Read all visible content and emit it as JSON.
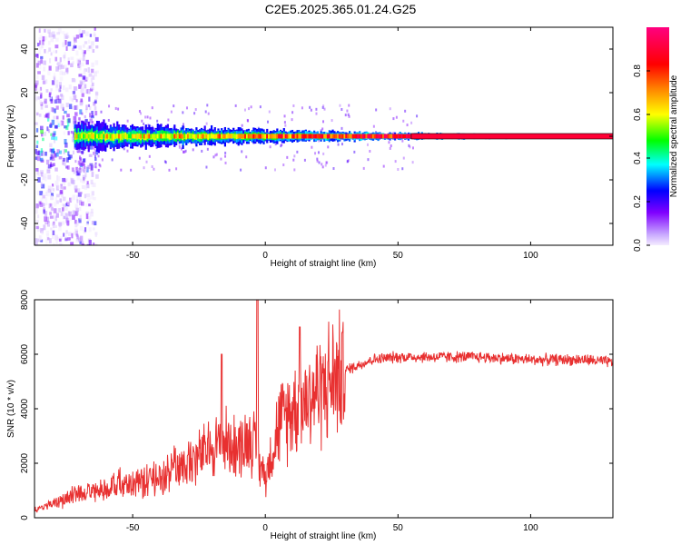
{
  "figure": {
    "title": "C2E5.2025.365.01.24.G25"
  },
  "colorbar": {
    "label": "Normalized spectral amplitude",
    "ticks": [
      "0.0",
      "0.2",
      "0.4",
      "0.6",
      "0.8"
    ],
    "tick_values": [
      0.0,
      0.2,
      0.4,
      0.6,
      0.8
    ],
    "range": [
      0,
      1
    ],
    "colors": [
      "#e8d8ff",
      "#8000ff",
      "#0000ff",
      "#00ffff",
      "#00ff00",
      "#ffff00",
      "#ff8000",
      "#ff0000",
      "#ff0080"
    ]
  },
  "chart_data": [
    {
      "type": "heatmap",
      "name": "spectrogram",
      "xlabel": "Height of straight line (km)",
      "ylabel": "Frequency (Hz)",
      "xlim": [
        -87,
        131
      ],
      "ylim": [
        -50,
        50
      ],
      "xticks": [
        -50,
        0,
        50,
        100
      ],
      "yticks": [
        40,
        20,
        0,
        -20,
        -40
      ],
      "xtick_labels": [
        "-50",
        "0",
        "50",
        "100"
      ],
      "ytick_labels": [
        "40",
        "20",
        "0",
        "-20",
        "-40"
      ],
      "ridge": {
        "frequency_hz": 0,
        "x_start": -72,
        "x_end": 131,
        "peak_amplitude": 0.95
      },
      "noise_region": {
        "x_start": -87,
        "x_end": -72,
        "frequency_span_hz": [
          -50,
          50
        ]
      }
    },
    {
      "type": "line",
      "name": "snr",
      "xlabel": "Height of straight line (km)",
      "ylabel": "SNR (10 * v/v)",
      "xlim": [
        -87,
        131
      ],
      "ylim": [
        0,
        8000
      ],
      "xticks": [
        -50,
        0,
        50,
        100
      ],
      "yticks": [
        0,
        2000,
        4000,
        6000,
        8000
      ],
      "xtick_labels": [
        "-50",
        "0",
        "50",
        "100"
      ],
      "ytick_labels": [
        "0",
        "2000",
        "4000",
        "6000",
        "8000"
      ],
      "color": "#e83030",
      "trend_x": [
        -87,
        -80,
        -70,
        -60,
        -50,
        -40,
        -30,
        -20,
        -16,
        -10,
        -5,
        -3,
        0,
        5,
        10,
        20,
        30,
        40,
        50,
        60,
        80,
        100,
        120,
        131
      ],
      "trend_y": [
        300,
        500,
        900,
        1100,
        1300,
        1500,
        1900,
        2600,
        2800,
        2600,
        3000,
        2200,
        1500,
        3400,
        4000,
        4700,
        5400,
        5800,
        5900,
        5900,
        5900,
        5800,
        5800,
        5700
      ],
      "spikes_x": [
        -16.5,
        -3,
        13,
        29
      ],
      "spikes_y": [
        6000,
        8000,
        7000,
        6800
      ]
    }
  ]
}
